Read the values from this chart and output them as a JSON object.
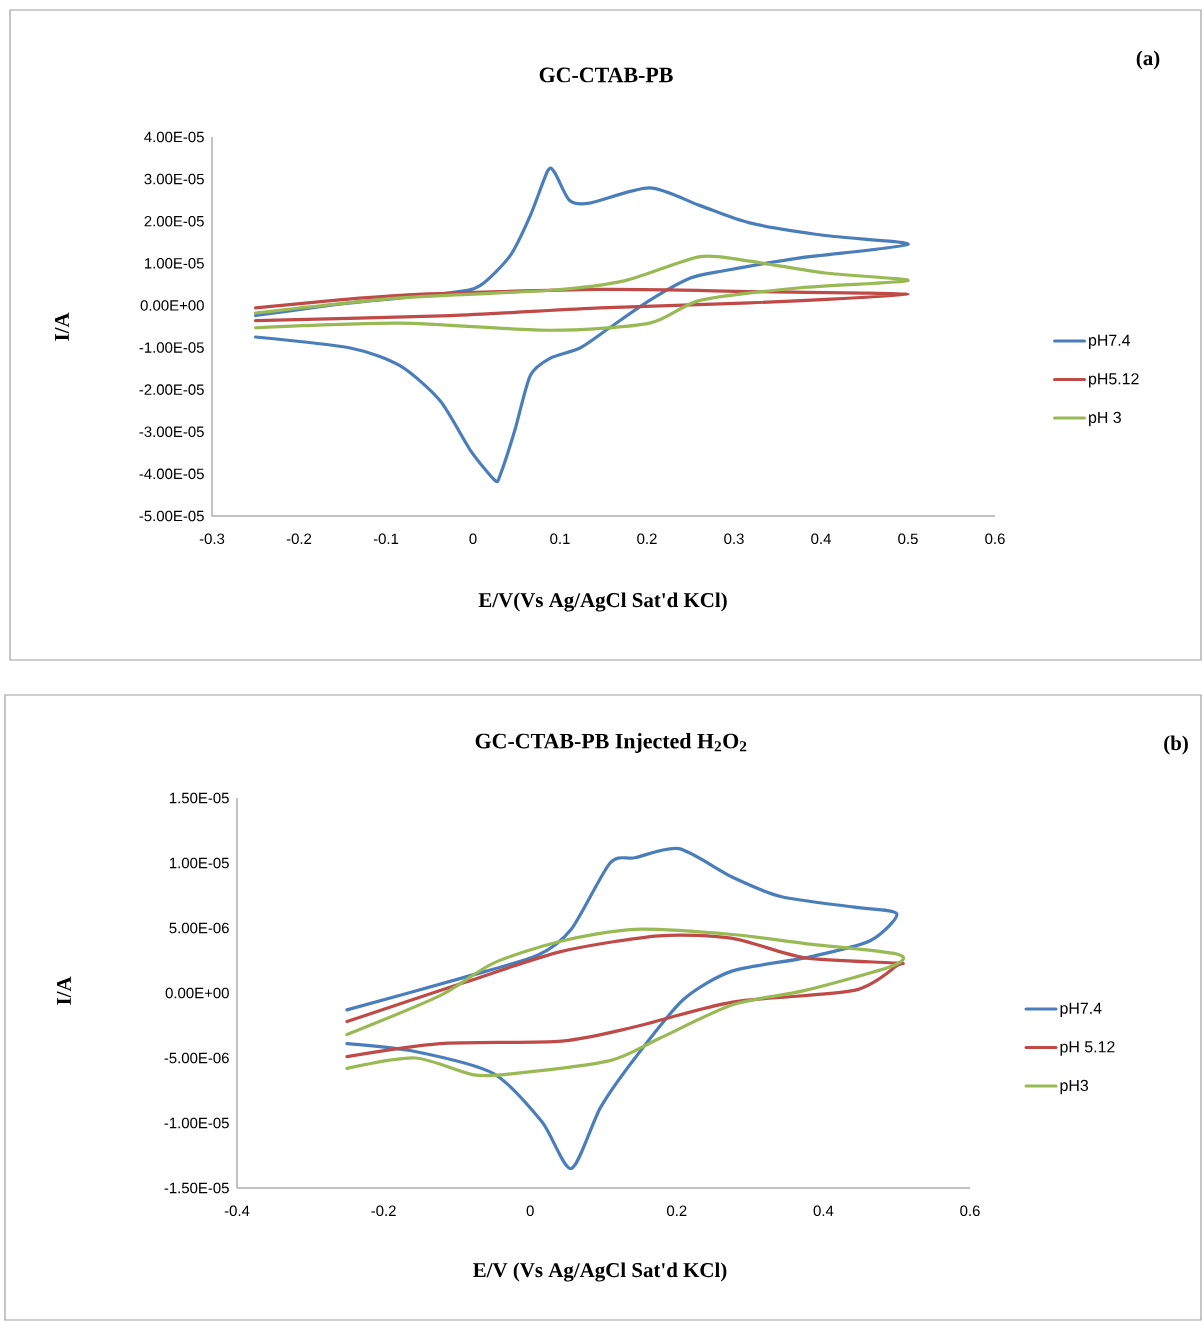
{
  "chart_data": [
    {
      "type": "line",
      "title": "GC-CTAB-PB",
      "xlabel": "E/V(Vs  Ag/AgCl Sat'd KCl)",
      "ylabel": "I/A",
      "annotations": [
        "(a)"
      ],
      "xlim": [
        -0.3,
        0.6
      ],
      "xticks": [
        -0.3,
        -0.2,
        -0.1,
        0,
        0.1,
        0.2,
        0.3,
        0.4,
        0.5,
        0.6
      ],
      "ylim": [
        -5e-05,
        4e-05
      ],
      "yticks": [
        {
          "value": 4e-05,
          "label": "4.00E-05"
        },
        {
          "value": 3e-05,
          "label": "3.00E-05"
        },
        {
          "value": 2e-05,
          "label": "2.00E-05"
        },
        {
          "value": 1e-05,
          "label": "1.00E-05"
        },
        {
          "value": 0,
          "label": "0.00E+00"
        },
        {
          "value": -1e-05,
          "label": "-1.00E-05"
        },
        {
          "value": -2e-05,
          "label": "-2.00E-05"
        },
        {
          "value": -3e-05,
          "label": "-3.00E-05"
        },
        {
          "value": -4e-05,
          "label": "-4.00E-05"
        },
        {
          "value": -5e-05,
          "label": "-5.00E-05"
        }
      ],
      "legend": "right",
      "line_style": "solid",
      "series": [
        {
          "name": "pH7.4",
          "color": "#4a7ebb",
          "x": [
            -0.25,
            -0.141,
            -0.026,
            0.008,
            0.043,
            0.066,
            0.086,
            0.094,
            0.111,
            0.134,
            0.203,
            0.261,
            0.318,
            0.405,
            0.5,
            0.376,
            0.29,
            0.25,
            0.203,
            0.157,
            0.123,
            0.089,
            0.066,
            0.048,
            0.031,
            0.025,
            -0.003,
            -0.038,
            -0.084,
            -0.141,
            -0.25
          ],
          "values": [
            -2.4e-06,
            6e-07,
            3e-06,
            4.7e-06,
            1.19e-05,
            2.14e-05,
            3.2e-05,
            3.15e-05,
            2.49e-05,
            2.43e-05,
            2.79e-05,
            2.37e-05,
            1.96e-05,
            1.66e-05,
            1.45e-05,
            1.13e-05,
            8.3e-06,
            6.5e-06,
            1.2e-06,
            -5.3e-06,
            -1.01e-05,
            -1.25e-05,
            -1.66e-05,
            -2.97e-05,
            -4.04e-05,
            -4.15e-05,
            -3.44e-05,
            -2.26e-05,
            -1.43e-05,
            -1.01e-05,
            -7.5e-06
          ]
        },
        {
          "name": "pH5.12",
          "color": "#be4b48",
          "x": [
            -0.25,
            -0.084,
            0.146,
            0.318,
            0.5,
            0.318,
            0.146,
            -0.026,
            -0.25
          ],
          "values": [
            -6e-07,
            2.4e-06,
            3.8e-06,
            3.3e-06,
            2.6e-06,
            6e-07,
            -6e-07,
            -2.4e-06,
            -3.6e-06
          ]
        },
        {
          "name": "pH 3",
          "color": "#98b954",
          "x": [
            -0.25,
            -0.084,
            0.089,
            0.175,
            0.261,
            0.318,
            0.405,
            0.5,
            0.376,
            0.261,
            0.203,
            0.089,
            -0.084,
            -0.25
          ],
          "values": [
            -1.8e-06,
            1.8e-06,
            3.6e-06,
            5.9e-06,
            1.16e-05,
            1.05e-05,
            7.7e-06,
            5.9e-06,
            4.2e-06,
            1.2e-06,
            -4.2e-06,
            -5.9e-06,
            -4.2e-06,
            -5.3e-06
          ]
        }
      ]
    },
    {
      "type": "line",
      "title": "GC-CTAB-PB  Injected H$_{2}$O$_{2}$",
      "xlabel": "E/V  (Vs Ag/AgCl Sat'd KCl)",
      "ylabel": "I/A",
      "annotations": [
        "(b)"
      ],
      "xlim": [
        -0.4,
        0.6
      ],
      "xticks": [
        -0.4,
        -0.2,
        0,
        0.2,
        0.4,
        0.6
      ],
      "ylim": [
        -1.5e-05,
        1.5e-05
      ],
      "yticks": [
        {
          "value": 1.5e-05,
          "label": "1.50E-05"
        },
        {
          "value": 1e-05,
          "label": "1.00E-05"
        },
        {
          "value": 5e-06,
          "label": "5.00E-06"
        },
        {
          "value": 0,
          "label": "0.00E+00"
        },
        {
          "value": -5e-06,
          "label": "-5.00E-06"
        },
        {
          "value": -1e-05,
          "label": "-1.00E-05"
        },
        {
          "value": -1.5e-05,
          "label": "-1.50E-05"
        }
      ],
      "legend": "right",
      "line_style": "solid",
      "series": [
        {
          "name": "pH7.4",
          "color": "#4a7ebb",
          "x": [
            -0.25,
            -0.09,
            0.01,
            0.056,
            0.109,
            0.143,
            0.203,
            0.276,
            0.343,
            0.442,
            0.5,
            0.463,
            0.375,
            0.276,
            0.209,
            0.143,
            0.096,
            0.056,
            0.016,
            -0.05,
            -0.157,
            -0.25
          ],
          "values": [
            -1.3e-06,
            1.2e-06,
            2.9e-06,
            4.9e-06,
            1e-05,
            1.04e-05,
            1.11e-05,
            8.9e-06,
            7.4e-06,
            6.6e-06,
            6.1e-06,
            4e-06,
            2.7e-06,
            1.7e-06,
            -5e-07,
            -5e-06,
            -8.8e-06,
            -1.35e-05,
            -9.9e-06,
            -6.2e-06,
            -4.5e-06,
            -3.9e-06
          ]
        },
        {
          "name": "pH 5.12",
          "color": "#be4b48",
          "x": [
            -0.25,
            -0.09,
            0.043,
            0.176,
            0.276,
            0.375,
            0.5,
            0.5,
            0.442,
            0.276,
            0.143,
            0.043,
            -0.123,
            -0.25
          ],
          "values": [
            -2.2e-06,
            8e-07,
            3.2e-06,
            4.4e-06,
            4.2e-06,
            2.7e-06,
            2.3e-06,
            2.1e-06,
            2e-07,
            -7e-07,
            -2.6e-06,
            -3.7e-06,
            -3.9e-06,
            -4.9e-06
          ]
        },
        {
          "name": "pH3",
          "color": "#98b954",
          "x": [
            -0.25,
            -0.123,
            -0.05,
            0.043,
            0.143,
            0.276,
            0.375,
            0.5,
            0.495,
            0.375,
            0.276,
            0.176,
            0.109,
            -0.023,
            -0.077,
            -0.157,
            -0.25
          ],
          "values": [
            -3.2e-06,
            -2e-07,
            2.3e-06,
            4e-06,
            4.9e-06,
            4.5e-06,
            3.8e-06,
            3e-06,
            2.1e-06,
            2e-07,
            -9e-07,
            -3.5e-06,
            -5.2e-06,
            -6.2e-06,
            -6.3e-06,
            -5e-06,
            -5.8e-06
          ]
        }
      ]
    }
  ]
}
